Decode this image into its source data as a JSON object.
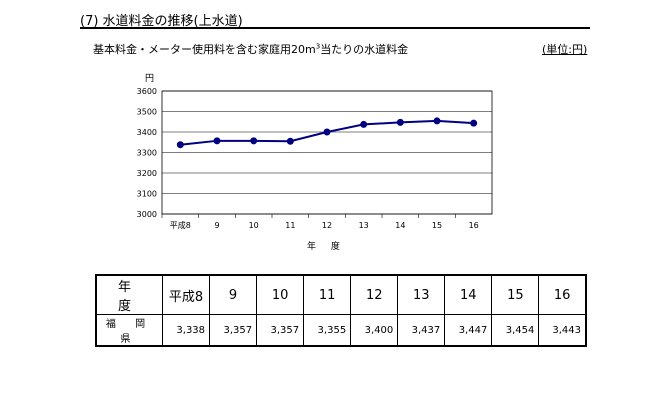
{
  "heading": "(7)  水道料金の推移(上水道)",
  "subtitle": {
    "text": "基本料金・メーター使用料を含む家庭用20m",
    "sup": "3",
    "rest": "当たりの水道料金"
  },
  "unit_label": "(単位:円)",
  "chart_data": {
    "type": "line",
    "categories": [
      "平成8",
      "9",
      "10",
      "11",
      "12",
      "13",
      "14",
      "15",
      "16"
    ],
    "series": [
      {
        "values": [
          3338,
          3357,
          3357,
          3355,
          3400,
          3437,
          3447,
          3454,
          3443
        ]
      }
    ],
    "ylim": [
      3000,
      3600
    ],
    "yticks": [
      "3000",
      "3100",
      "3200",
      "3300",
      "3400",
      "3500",
      "3600"
    ],
    "ylabel": "円",
    "xlabel": "年 度",
    "grid": true,
    "line_color": "#000080",
    "marker_color": "#000080"
  },
  "table": {
    "header_label": "年 度",
    "years": [
      "平成8",
      "9",
      "10",
      "11",
      "12",
      "13",
      "14",
      "15",
      "16"
    ],
    "row_label": "福 岡 県",
    "values": [
      "3,338",
      "3,357",
      "3,357",
      "3,355",
      "3,400",
      "3,437",
      "3,447",
      "3,454",
      "3,443"
    ]
  }
}
